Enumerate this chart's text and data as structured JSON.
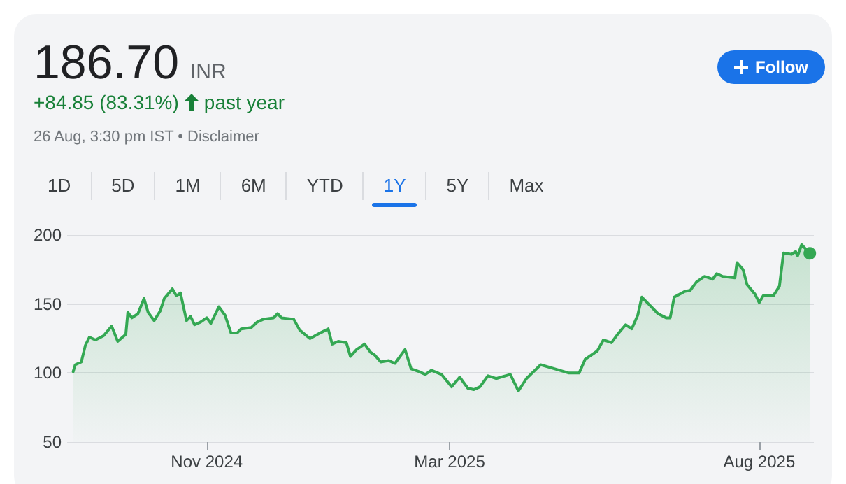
{
  "chart_data": {
    "type": "area",
    "title": "186.70",
    "subtitle": "INR",
    "annotations": [
      "+84.85 (83.31%)",
      "past year",
      "26 Aug, 3:30 pm IST • Disclaimer",
      "Follow",
      "1D",
      "5D",
      "1M",
      "6M",
      "YTD",
      "1Y",
      "5Y",
      "Max"
    ],
    "x": [
      "2024-08-27",
      "2024-08-28",
      "2024-08-31",
      "2024-09-02",
      "2024-09-04",
      "2024-09-07",
      "2024-09-11",
      "2024-09-15",
      "2024-09-18",
      "2024-09-22",
      "2024-09-23",
      "2024-09-25",
      "2024-09-28",
      "2024-10-01",
      "2024-10-03",
      "2024-10-06",
      "2024-10-09",
      "2024-10-11",
      "2024-10-15",
      "2024-10-17",
      "2024-10-19",
      "2024-10-22",
      "2024-10-24",
      "2024-10-26",
      "2024-10-29",
      "2024-11-01",
      "2024-11-03",
      "2024-11-07",
      "2024-11-10",
      "2024-11-13",
      "2024-11-16",
      "2024-11-18",
      "2024-11-23",
      "2024-11-26",
      "2024-11-29",
      "2024-12-04",
      "2024-12-06",
      "2024-12-08",
      "2024-12-14",
      "2024-12-17",
      "2024-12-22",
      "2024-12-27",
      "2024-12-31",
      "2025-01-02",
      "2025-01-05",
      "2025-01-09",
      "2025-01-11",
      "2025-01-14",
      "2025-01-18",
      "2025-01-21",
      "2025-01-23",
      "2025-01-26",
      "2025-01-30",
      "2025-02-02",
      "2025-02-07",
      "2025-02-10",
      "2025-02-14",
      "2025-02-17",
      "2025-02-20",
      "2025-02-25",
      "2025-03-02",
      "2025-03-06",
      "2025-03-10",
      "2025-03-13",
      "2025-03-16",
      "2025-03-20",
      "2025-03-24",
      "2025-03-31",
      "2025-04-04",
      "2025-04-08",
      "2025-04-15",
      "2025-04-22",
      "2025-04-29",
      "2025-05-04",
      "2025-05-07",
      "2025-05-13",
      "2025-05-16",
      "2025-05-20",
      "2025-05-23",
      "2025-05-27",
      "2025-05-30",
      "2025-06-02",
      "2025-06-04",
      "2025-06-08",
      "2025-06-12",
      "2025-06-16",
      "2025-06-18",
      "2025-06-20",
      "2025-06-25",
      "2025-06-28",
      "2025-07-01",
      "2025-07-05",
      "2025-07-09",
      "2025-07-11",
      "2025-07-14",
      "2025-07-20",
      "2025-07-21",
      "2025-07-24",
      "2025-07-26",
      "2025-07-30",
      "2025-08-01",
      "2025-08-03",
      "2025-08-08",
      "2025-08-11",
      "2025-08-13",
      "2025-08-17",
      "2025-08-19",
      "2025-08-20",
      "2025-08-22",
      "2025-08-26"
    ],
    "series": [
      {
        "color": "#34a853",
        "values": [
          101,
          106,
          108,
          120,
          126,
          124,
          127,
          134,
          123,
          128,
          144,
          140,
          143,
          154,
          144,
          138,
          145,
          154,
          161,
          156,
          158,
          138,
          141,
          135,
          137,
          140,
          136,
          148,
          142,
          129,
          129,
          132,
          133,
          137,
          139,
          140,
          143,
          140,
          139,
          131,
          125,
          129,
          132,
          121,
          123,
          122,
          112,
          117,
          121,
          115,
          113,
          108,
          109,
          107,
          117,
          103,
          101,
          99,
          102,
          99,
          90,
          97,
          89,
          88,
          90,
          98,
          96,
          99,
          87,
          96,
          106,
          103,
          100,
          100,
          110,
          116,
          124,
          122,
          128,
          135,
          132,
          142,
          155,
          149,
          143,
          140,
          140,
          155,
          159,
          160,
          166,
          170,
          168,
          172,
          170,
          169,
          180,
          175,
          164,
          157,
          151,
          156,
          156,
          163,
          187,
          186,
          188,
          185,
          193,
          186.7
        ]
      }
    ],
    "xlim": [
      "2024-08-24",
      "2025-08-28"
    ],
    "xticks": [
      {
        "value": "2024-11-01",
        "label": "Nov 2024"
      },
      {
        "value": "2025-03-01",
        "label": "Mar 2025"
      },
      {
        "value": "2025-08-01",
        "label": "Aug 2025"
      }
    ],
    "ylim": [
      50,
      200
    ],
    "yticks": [
      50,
      100,
      150,
      200
    ],
    "grid": "y",
    "line_style": "solid"
  }
}
